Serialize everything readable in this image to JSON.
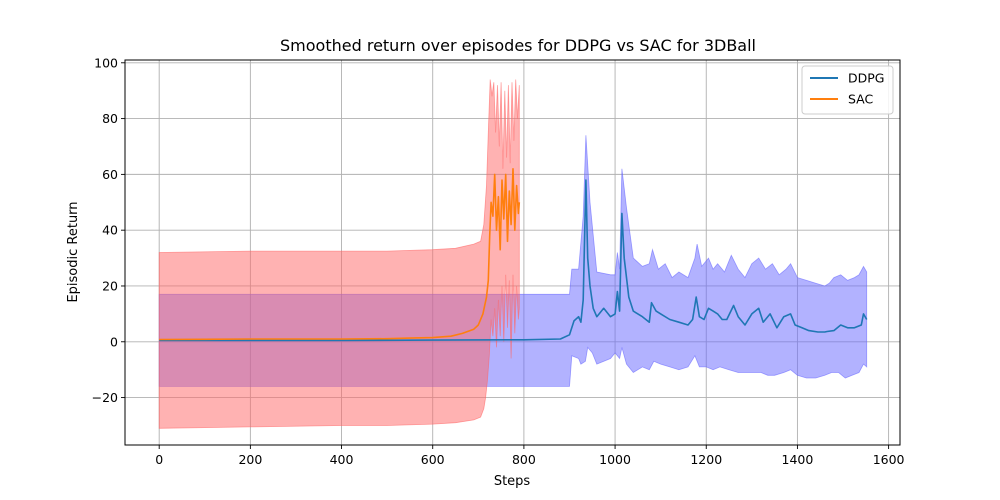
{
  "chart_data": {
    "type": "line",
    "title": "Smoothed return over episodes for DDPG vs SAC for 3DBall",
    "xlabel": "Steps",
    "ylabel": "Episodic Return",
    "xlim": [
      -75,
      1625
    ],
    "ylim": [
      -37,
      101
    ],
    "xticks": [
      0,
      200,
      400,
      600,
      800,
      1000,
      1200,
      1400,
      1600
    ],
    "yticks": [
      -20,
      0,
      20,
      40,
      60,
      80,
      100
    ],
    "grid": true,
    "legend": {
      "position": "top-right"
    },
    "series": [
      {
        "name": "DDPG",
        "color": "#1f77b4",
        "band_color": "#6666ff",
        "points": [
          [
            0,
            0.5
          ],
          [
            200,
            0.5
          ],
          [
            400,
            0.5
          ],
          [
            600,
            0.6
          ],
          [
            800,
            0.7
          ],
          [
            880,
            1.0
          ],
          [
            900,
            2.5
          ],
          [
            910,
            7.5
          ],
          [
            920,
            9
          ],
          [
            925,
            7
          ],
          [
            930,
            15
          ],
          [
            936,
            58
          ],
          [
            940,
            30
          ],
          [
            945,
            20
          ],
          [
            952,
            12
          ],
          [
            960,
            9
          ],
          [
            975,
            12
          ],
          [
            990,
            9
          ],
          [
            1000,
            10
          ],
          [
            1005,
            18
          ],
          [
            1010,
            11
          ],
          [
            1015,
            46
          ],
          [
            1020,
            30
          ],
          [
            1030,
            16
          ],
          [
            1040,
            11
          ],
          [
            1060,
            9
          ],
          [
            1075,
            7
          ],
          [
            1080,
            14
          ],
          [
            1090,
            11
          ],
          [
            1100,
            10
          ],
          [
            1120,
            8
          ],
          [
            1140,
            7
          ],
          [
            1160,
            6
          ],
          [
            1170,
            8
          ],
          [
            1178,
            16
          ],
          [
            1185,
            9
          ],
          [
            1195,
            8
          ],
          [
            1205,
            12
          ],
          [
            1215,
            11
          ],
          [
            1225,
            10
          ],
          [
            1235,
            8
          ],
          [
            1245,
            8
          ],
          [
            1260,
            13
          ],
          [
            1270,
            9
          ],
          [
            1285,
            6
          ],
          [
            1300,
            10
          ],
          [
            1315,
            12
          ],
          [
            1325,
            7
          ],
          [
            1340,
            10
          ],
          [
            1355,
            5
          ],
          [
            1370,
            9
          ],
          [
            1385,
            10
          ],
          [
            1395,
            6
          ],
          [
            1410,
            5
          ],
          [
            1425,
            4
          ],
          [
            1445,
            3.5
          ],
          [
            1460,
            3.5
          ],
          [
            1465,
            3.7
          ],
          [
            1480,
            4
          ],
          [
            1495,
            6
          ],
          [
            1510,
            5
          ],
          [
            1525,
            5
          ],
          [
            1540,
            6
          ],
          [
            1545,
            10
          ],
          [
            1552,
            8
          ]
        ],
        "band_upper": [
          [
            0,
            17
          ],
          [
            200,
            17
          ],
          [
            400,
            17
          ],
          [
            600,
            17
          ],
          [
            880,
            17
          ],
          [
            900,
            17
          ],
          [
            905,
            26
          ],
          [
            920,
            26
          ],
          [
            930,
            45
          ],
          [
            936,
            74
          ],
          [
            945,
            50
          ],
          [
            960,
            25
          ],
          [
            990,
            24
          ],
          [
            1000,
            24
          ],
          [
            1005,
            32
          ],
          [
            1010,
            26
          ],
          [
            1015,
            62
          ],
          [
            1025,
            48
          ],
          [
            1040,
            30
          ],
          [
            1060,
            27
          ],
          [
            1075,
            28
          ],
          [
            1082,
            33
          ],
          [
            1095,
            26
          ],
          [
            1110,
            28
          ],
          [
            1125,
            23
          ],
          [
            1140,
            25
          ],
          [
            1160,
            23
          ],
          [
            1175,
            30
          ],
          [
            1180,
            35
          ],
          [
            1190,
            27
          ],
          [
            1205,
            30
          ],
          [
            1215,
            26
          ],
          [
            1225,
            28
          ],
          [
            1240,
            25
          ],
          [
            1255,
            31
          ],
          [
            1270,
            26
          ],
          [
            1285,
            23
          ],
          [
            1300,
            28
          ],
          [
            1315,
            30
          ],
          [
            1330,
            26
          ],
          [
            1345,
            28
          ],
          [
            1360,
            24
          ],
          [
            1375,
            26
          ],
          [
            1385,
            28
          ],
          [
            1400,
            23
          ],
          [
            1420,
            22
          ],
          [
            1440,
            21
          ],
          [
            1460,
            20
          ],
          [
            1470,
            21
          ],
          [
            1480,
            23
          ],
          [
            1495,
            24
          ],
          [
            1510,
            22
          ],
          [
            1525,
            23
          ],
          [
            1535,
            24
          ],
          [
            1545,
            27
          ],
          [
            1552,
            25
          ]
        ],
        "band_lower": [
          [
            0,
            -16
          ],
          [
            200,
            -16
          ],
          [
            400,
            -16
          ],
          [
            600,
            -16
          ],
          [
            880,
            -16
          ],
          [
            900,
            -16
          ],
          [
            905,
            -5
          ],
          [
            920,
            -6
          ],
          [
            925,
            -8
          ],
          [
            935,
            -7
          ],
          [
            940,
            -2
          ],
          [
            950,
            -4
          ],
          [
            960,
            -8
          ],
          [
            990,
            -6
          ],
          [
            1000,
            -4
          ],
          [
            1010,
            -6
          ],
          [
            1015,
            -2
          ],
          [
            1025,
            -8
          ],
          [
            1040,
            -11
          ],
          [
            1060,
            -9
          ],
          [
            1075,
            -10
          ],
          [
            1085,
            -7
          ],
          [
            1100,
            -8
          ],
          [
            1120,
            -9
          ],
          [
            1140,
            -10
          ],
          [
            1160,
            -9
          ],
          [
            1175,
            -5
          ],
          [
            1185,
            -9
          ],
          [
            1200,
            -9
          ],
          [
            1215,
            -10
          ],
          [
            1230,
            -9
          ],
          [
            1250,
            -10
          ],
          [
            1270,
            -11
          ],
          [
            1285,
            -11
          ],
          [
            1300,
            -11
          ],
          [
            1320,
            -11
          ],
          [
            1335,
            -12
          ],
          [
            1350,
            -12
          ],
          [
            1370,
            -11
          ],
          [
            1385,
            -10
          ],
          [
            1400,
            -12
          ],
          [
            1420,
            -13
          ],
          [
            1440,
            -13
          ],
          [
            1460,
            -12
          ],
          [
            1475,
            -11
          ],
          [
            1490,
            -11
          ],
          [
            1505,
            -13
          ],
          [
            1520,
            -12
          ],
          [
            1535,
            -11
          ],
          [
            1545,
            -8
          ],
          [
            1552,
            -9
          ]
        ]
      },
      {
        "name": "SAC",
        "color": "#ff7f0e",
        "band_color": "#ff6666",
        "points": [
          [
            0,
            0.8
          ],
          [
            100,
            0.9
          ],
          [
            200,
            1.0
          ],
          [
            300,
            1.0
          ],
          [
            400,
            1.0
          ],
          [
            500,
            1.1
          ],
          [
            550,
            1.3
          ],
          [
            600,
            1.5
          ],
          [
            640,
            2
          ],
          [
            665,
            3
          ],
          [
            690,
            4.5
          ],
          [
            700,
            6
          ],
          [
            710,
            10
          ],
          [
            718,
            16
          ],
          [
            722,
            22
          ],
          [
            725,
            38
          ],
          [
            728,
            50
          ],
          [
            732,
            45
          ],
          [
            736,
            60
          ],
          [
            740,
            40
          ],
          [
            744,
            52
          ],
          [
            748,
            33
          ],
          [
            752,
            58
          ],
          [
            756,
            44
          ],
          [
            760,
            60
          ],
          [
            764,
            36
          ],
          [
            768,
            54
          ],
          [
            772,
            42
          ],
          [
            776,
            62
          ],
          [
            780,
            40
          ],
          [
            784,
            56
          ],
          [
            788,
            46
          ],
          [
            790,
            50
          ]
        ],
        "band_upper": [
          [
            0,
            32
          ],
          [
            200,
            32.5
          ],
          [
            400,
            32.5
          ],
          [
            500,
            32.5
          ],
          [
            600,
            33
          ],
          [
            650,
            33.5
          ],
          [
            690,
            35
          ],
          [
            705,
            36
          ],
          [
            712,
            42
          ],
          [
            718,
            56
          ],
          [
            722,
            75
          ],
          [
            726,
            94
          ],
          [
            730,
            88
          ],
          [
            734,
            93
          ],
          [
            738,
            75
          ],
          [
            742,
            92
          ],
          [
            746,
            70
          ],
          [
            750,
            93
          ],
          [
            754,
            62
          ],
          [
            758,
            90
          ],
          [
            762,
            66
          ],
          [
            766,
            92
          ],
          [
            770,
            64
          ],
          [
            774,
            93
          ],
          [
            778,
            72
          ],
          [
            782,
            94
          ],
          [
            786,
            80
          ],
          [
            790,
            92
          ]
        ],
        "band_lower": [
          [
            0,
            -31
          ],
          [
            200,
            -30.5
          ],
          [
            400,
            -30
          ],
          [
            500,
            -30
          ],
          [
            600,
            -29.5
          ],
          [
            650,
            -29
          ],
          [
            690,
            -28
          ],
          [
            705,
            -27
          ],
          [
            712,
            -24
          ],
          [
            716,
            -20
          ],
          [
            720,
            -14
          ],
          [
            724,
            -5
          ],
          [
            728,
            8
          ],
          [
            732,
            2
          ],
          [
            736,
            12
          ],
          [
            740,
            -2
          ],
          [
            744,
            15
          ],
          [
            748,
            2
          ],
          [
            752,
            20
          ],
          [
            756,
            0
          ],
          [
            760,
            24
          ],
          [
            764,
            5
          ],
          [
            768,
            22
          ],
          [
            772,
            -6
          ],
          [
            776,
            24
          ],
          [
            780,
            3
          ],
          [
            784,
            20
          ],
          [
            788,
            8
          ],
          [
            790,
            12
          ]
        ]
      }
    ]
  }
}
